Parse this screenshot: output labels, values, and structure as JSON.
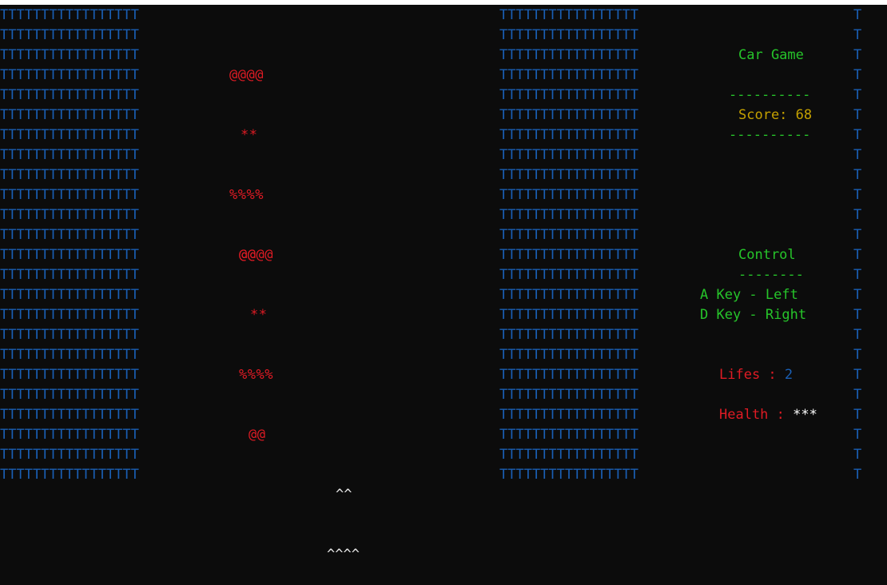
{
  "wall_row": "TTTTTTTTTTTTTTTTT",
  "far_wall_char": "T",
  "enemy_cars": [
    [
      "@@@@",
      "**",
      "%%%%",
      "@@"
    ],
    [
      "@@@@",
      "**",
      "%%%%",
      "@@"
    ]
  ],
  "player_car": [
    "^^",
    "^^^^"
  ],
  "hud": {
    "title": "Car Game",
    "divider": "----------",
    "score_label": "Score:",
    "score_value": "68",
    "control_title": "Control",
    "control_divider": "--------",
    "left_key": "A Key - Left",
    "right_key": "D Key - Right",
    "lifes_label": "Lifes :",
    "lifes_value": "2",
    "health_label": "Health :",
    "health_value": "***"
  },
  "colors": {
    "wall": "#1a5fb4",
    "enemy": "#e01b24",
    "player": "#e8e8e8",
    "hud_green": "#26c42a",
    "score": "#c4a000",
    "status_red": "#e01b24"
  }
}
